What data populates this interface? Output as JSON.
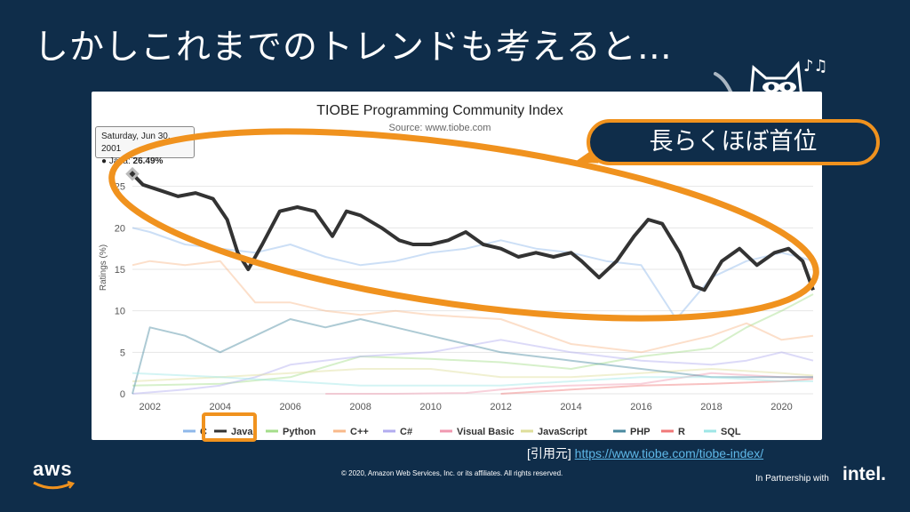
{
  "slide": {
    "title": "しかしこれまでのトレンドも考えると…",
    "callout": "長らくほぼ首位",
    "citation_prefix": "[引用元]",
    "citation_link": "https://www.tiobe.com/tiobe-index/",
    "copyright": "© 2020, Amazon Web Services, Inc. or its affiliates. All rights reserved.",
    "aws_logo": "aws",
    "partner_text": "In Partnership with",
    "partner_logo": "intel.",
    "music_note": "♪♫"
  },
  "tooltip": {
    "date": "Saturday, Jun 30, 2001",
    "series": "● Java:",
    "value": "26.49%"
  },
  "colors": {
    "background": "#0f2d4a",
    "highlight": "#f0921e",
    "link": "#5fb8e8"
  },
  "chart_data": {
    "type": "line",
    "title": "TIOBE Programming Community Index",
    "subtitle": "Source: www.tiobe.com",
    "ylabel": "Ratings (%)",
    "xlabel": "",
    "ylim": [
      0,
      30
    ],
    "xlim": [
      2001.5,
      2020.9
    ],
    "yticks": [
      0,
      5,
      10,
      15,
      20,
      25
    ],
    "xticks": [
      2002,
      2004,
      2006,
      2008,
      2010,
      2012,
      2014,
      2016,
      2018,
      2020
    ],
    "legend_position": "bottom",
    "series": [
      {
        "name": "C",
        "color": "#8fb8ea",
        "width": 2,
        "opacity": 0.45,
        "x": [
          2001.5,
          2002,
          2003,
          2004,
          2005,
          2006,
          2007,
          2008,
          2009,
          2010,
          2011,
          2012,
          2013,
          2014,
          2015,
          2016,
          2017,
          2018,
          2019,
          2020,
          2020.5,
          2020.9
        ],
        "y": [
          20,
          19.5,
          18,
          17.5,
          17,
          18,
          16.5,
          15.5,
          16,
          17,
          17.5,
          18.5,
          17.5,
          17,
          16,
          15.5,
          9,
          14,
          16,
          17,
          16.5,
          16
        ]
      },
      {
        "name": "Java",
        "color": "#333333",
        "width": 4,
        "opacity": 1,
        "x": [
          2001.5,
          2001.8,
          2002.3,
          2002.8,
          2003.3,
          2003.8,
          2004.2,
          2004.5,
          2004.8,
          2005.2,
          2005.7,
          2006.2,
          2006.7,
          2007.2,
          2007.6,
          2008.0,
          2008.6,
          2009.1,
          2009.5,
          2010.0,
          2010.5,
          2011.0,
          2011.5,
          2012.0,
          2012.5,
          2013.0,
          2013.5,
          2014.0,
          2014.3,
          2014.8,
          2015.3,
          2015.8,
          2016.2,
          2016.6,
          2017.1,
          2017.5,
          2017.8,
          2018.3,
          2018.8,
          2019.3,
          2019.8,
          2020.2,
          2020.6,
          2020.9
        ],
        "y": [
          26.5,
          25.2,
          24.5,
          23.8,
          24.2,
          23.5,
          21,
          17,
          15,
          18,
          22,
          22.5,
          22,
          19,
          22,
          21.5,
          20,
          18.5,
          18,
          18,
          18.5,
          19.5,
          18,
          17.5,
          16.5,
          17,
          16.5,
          17,
          16,
          14,
          16,
          19,
          21,
          20.5,
          17,
          13,
          12.5,
          16,
          17.5,
          15.5,
          17,
          17.5,
          16,
          12.5
        ]
      },
      {
        "name": "Python",
        "color": "#a4dd8a",
        "width": 2,
        "opacity": 0.45,
        "x": [
          2001.5,
          2004,
          2006,
          2008,
          2010,
          2012,
          2014,
          2016,
          2018,
          2019,
          2020,
          2020.9
        ],
        "y": [
          1,
          1.2,
          2,
          4.5,
          4.2,
          3.8,
          3,
          4.5,
          5.5,
          8,
          10,
          12
        ]
      },
      {
        "name": "C++",
        "color": "#f8b98a",
        "width": 2,
        "opacity": 0.45,
        "x": [
          2001.5,
          2002,
          2003,
          2004,
          2005,
          2006,
          2007,
          2008,
          2009,
          2010,
          2012,
          2014,
          2016,
          2018,
          2019,
          2020,
          2020.9
        ],
        "y": [
          15.5,
          16,
          15.5,
          16,
          11,
          11,
          10,
          9.5,
          10,
          9.5,
          9,
          6,
          5,
          7,
          8.5,
          6.5,
          7
        ]
      },
      {
        "name": "C#",
        "color": "#b2acef",
        "width": 2,
        "opacity": 0.45,
        "x": [
          2001.5,
          2003,
          2004,
          2005,
          2006,
          2008,
          2010,
          2012,
          2014,
          2016,
          2018,
          2019,
          2020,
          2020.9
        ],
        "y": [
          0,
          0.5,
          1,
          2,
          3.5,
          4.5,
          5,
          6.5,
          5,
          4,
          3.5,
          4,
          5,
          4
        ]
      },
      {
        "name": "Visual Basic",
        "color": "#f098b0",
        "width": 2,
        "opacity": 0.45,
        "x": [
          2007,
          2009,
          2011,
          2012,
          2013,
          2014,
          2016,
          2018,
          2020,
          2020.9
        ],
        "y": [
          0,
          0,
          0.1,
          0.5,
          0.8,
          1,
          1.2,
          2.5,
          2,
          2
        ]
      },
      {
        "name": "JavaScript",
        "color": "#dede9a",
        "width": 2,
        "opacity": 0.45,
        "x": [
          2001.5,
          2004,
          2006,
          2008,
          2010,
          2012,
          2014,
          2016,
          2018,
          2020,
          2020.9
        ],
        "y": [
          1.5,
          2,
          2.5,
          3,
          3,
          2,
          2,
          2.5,
          3,
          2.5,
          2.2
        ]
      },
      {
        "name": "PHP",
        "color": "#4a8aa0",
        "width": 2,
        "opacity": 0.45,
        "x": [
          2001.5,
          2002,
          2003,
          2004,
          2005,
          2006,
          2007,
          2008,
          2009,
          2010,
          2012,
          2014,
          2016,
          2018,
          2020,
          2020.9
        ],
        "y": [
          0,
          8,
          7,
          5,
          7,
          9,
          8,
          9,
          8,
          7,
          5,
          4,
          3,
          2,
          2,
          2
        ]
      },
      {
        "name": "R",
        "color": "#f07878",
        "width": 2,
        "opacity": 0.45,
        "x": [
          2012,
          2014,
          2016,
          2018,
          2020,
          2020.9
        ],
        "y": [
          0,
          0.5,
          1,
          1.2,
          1.5,
          1.8
        ]
      },
      {
        "name": "SQL",
        "color": "#9ee6e6",
        "width": 2,
        "opacity": 0.45,
        "x": [
          2001.5,
          2004,
          2006,
          2008,
          2010,
          2012,
          2014,
          2016,
          2018,
          2020,
          2020.9
        ],
        "y": [
          2.5,
          2,
          1.5,
          1,
          1,
          1,
          1.5,
          2,
          2,
          1.5,
          1.5
        ]
      }
    ]
  }
}
